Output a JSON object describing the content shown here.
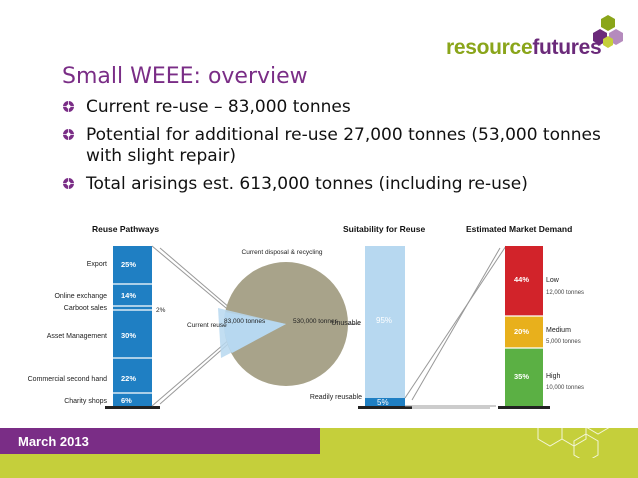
{
  "logo": {
    "word1": "resource",
    "word2": "futures"
  },
  "title": "Small WEEE: overview",
  "bullets": [
    "Current re-use – 83,000 tonnes",
    "Potential for additional re-use 27,000 tonnes (53,000 tonnes with slight repair)",
    "Total arisings est. 613,000 tonnes (including re-use)"
  ],
  "reuse_pathways": {
    "heading": "Reuse Pathways",
    "rows": [
      {
        "label": "Export",
        "value": "25%"
      },
      {
        "label": "Online exchange",
        "value": "14%"
      },
      {
        "label": "Carboot sales",
        "value": "2%"
      },
      {
        "label": "Asset Management",
        "value": "30%"
      },
      {
        "label": "Commercial second hand",
        "value": "22%"
      },
      {
        "label": "Charity shops",
        "value": "6%"
      }
    ]
  },
  "pie": {
    "disposal_label": "Current disposal & recycling",
    "reuse_label": "Current reuse",
    "reuse_value": "83,000 tonnes",
    "disposal_value": "530,000 tonnes"
  },
  "suitability": {
    "heading": "Suitability for Reuse",
    "unusable_label": "Unusable",
    "unusable_value": "95%",
    "reusable_label": "Readily reusable",
    "reusable_value": "5%"
  },
  "demand": {
    "heading": "Estimated Market Demand",
    "rows": [
      {
        "level": "Low",
        "pct": "44%",
        "tonnes": "12,000 tonnes",
        "color": "#d2232a"
      },
      {
        "level": "Medium",
        "pct": "20%",
        "tonnes": "5,000 tonnes",
        "color": "#e8b01c"
      },
      {
        "level": "High",
        "pct": "35%",
        "tonnes": "10,000 tonnes",
        "color": "#5bb044"
      }
    ]
  },
  "footer": {
    "date": "March 2013"
  },
  "colors": {
    "purple": "#7a2d86",
    "lime": "#c5cf3b",
    "blue": "#1f7fc3",
    "light_blue": "#b7d8f0",
    "pie_grey": "#a8a38a"
  }
}
